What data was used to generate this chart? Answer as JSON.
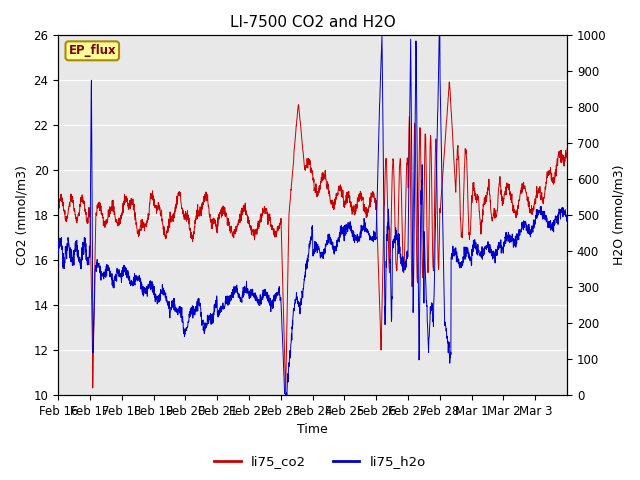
{
  "title": "LI-7500 CO2 and H2O",
  "xlabel": "Time",
  "ylabel_left": "CO2 (mmol/m3)",
  "ylabel_right": "H2O (mmol/m3)",
  "ylim_left": [
    10,
    26
  ],
  "ylim_right": [
    0,
    1000
  ],
  "yticks_left": [
    10,
    12,
    14,
    16,
    18,
    20,
    22,
    24,
    26
  ],
  "yticks_right": [
    0,
    100,
    200,
    300,
    400,
    500,
    600,
    700,
    800,
    900,
    1000
  ],
  "xtick_labels": [
    "Feb 16",
    "Feb 17",
    "Feb 18",
    "Feb 19",
    "Feb 20",
    "Feb 21",
    "Feb 22",
    "Feb 23",
    "Feb 24",
    "Feb 25",
    "Feb 26",
    "Feb 27",
    "Feb 28",
    "Mar 1",
    "Mar 2",
    "Mar 3"
  ],
  "legend_labels": [
    "li75_co2",
    "li75_h2o"
  ],
  "legend_colors": [
    "#cc0000",
    "#0000cc"
  ],
  "ep_flux_box_color": "#ffff99",
  "ep_flux_border_color": "#aa8800",
  "ep_flux_text": "EP_flux",
  "plot_bg_color": "#e8e8e8",
  "grid_color": "#ffffff",
  "title_fontsize": 11,
  "axis_fontsize": 9,
  "tick_fontsize": 8.5
}
